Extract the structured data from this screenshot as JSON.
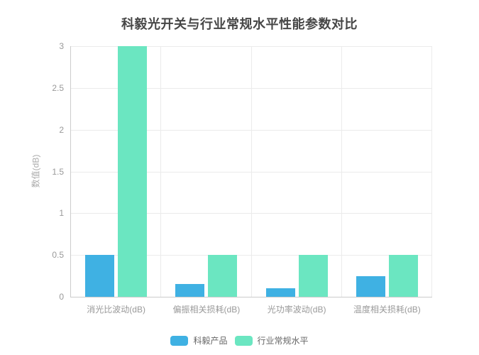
{
  "chart_data": {
    "type": "bar",
    "title": "科毅光开关与行业常规水平性能参数对比",
    "categories": [
      "消光比波动(dB)",
      "偏振相关损耗(dB)",
      "光功率波动(dB)",
      "温度相关损耗(dB)"
    ],
    "series": [
      {
        "id": "keyi-product",
        "name": "科毅产品",
        "color": "#3fb1e3",
        "values": [
          0.5,
          0.15,
          0.1,
          0.25
        ]
      },
      {
        "id": "industry-standard",
        "name": "行业常规水平",
        "color": "#6be6c1",
        "values": [
          3,
          0.5,
          0.5,
          0.5
        ]
      }
    ],
    "xlabel": "",
    "ylabel": "数值(dB)",
    "ylim": [
      0,
      3
    ],
    "yticks": [
      0,
      0.5,
      1,
      1.5,
      2,
      2.5,
      3
    ],
    "grid": true,
    "legend_position": "bottom",
    "legend": [
      "科毅产品",
      "行业常规水平"
    ]
  },
  "style": {
    "background": "#ffffff",
    "title_color": "#464646",
    "series1_color": "#3fb1e3",
    "series2_color": "#6be6c1",
    "axis_line_color": "#cccccc",
    "grid_line_color": "#ebebeb",
    "tick_label_color": "#999999",
    "axis_name_color": "#aaaaaa",
    "legend_text_color": "#666666"
  }
}
